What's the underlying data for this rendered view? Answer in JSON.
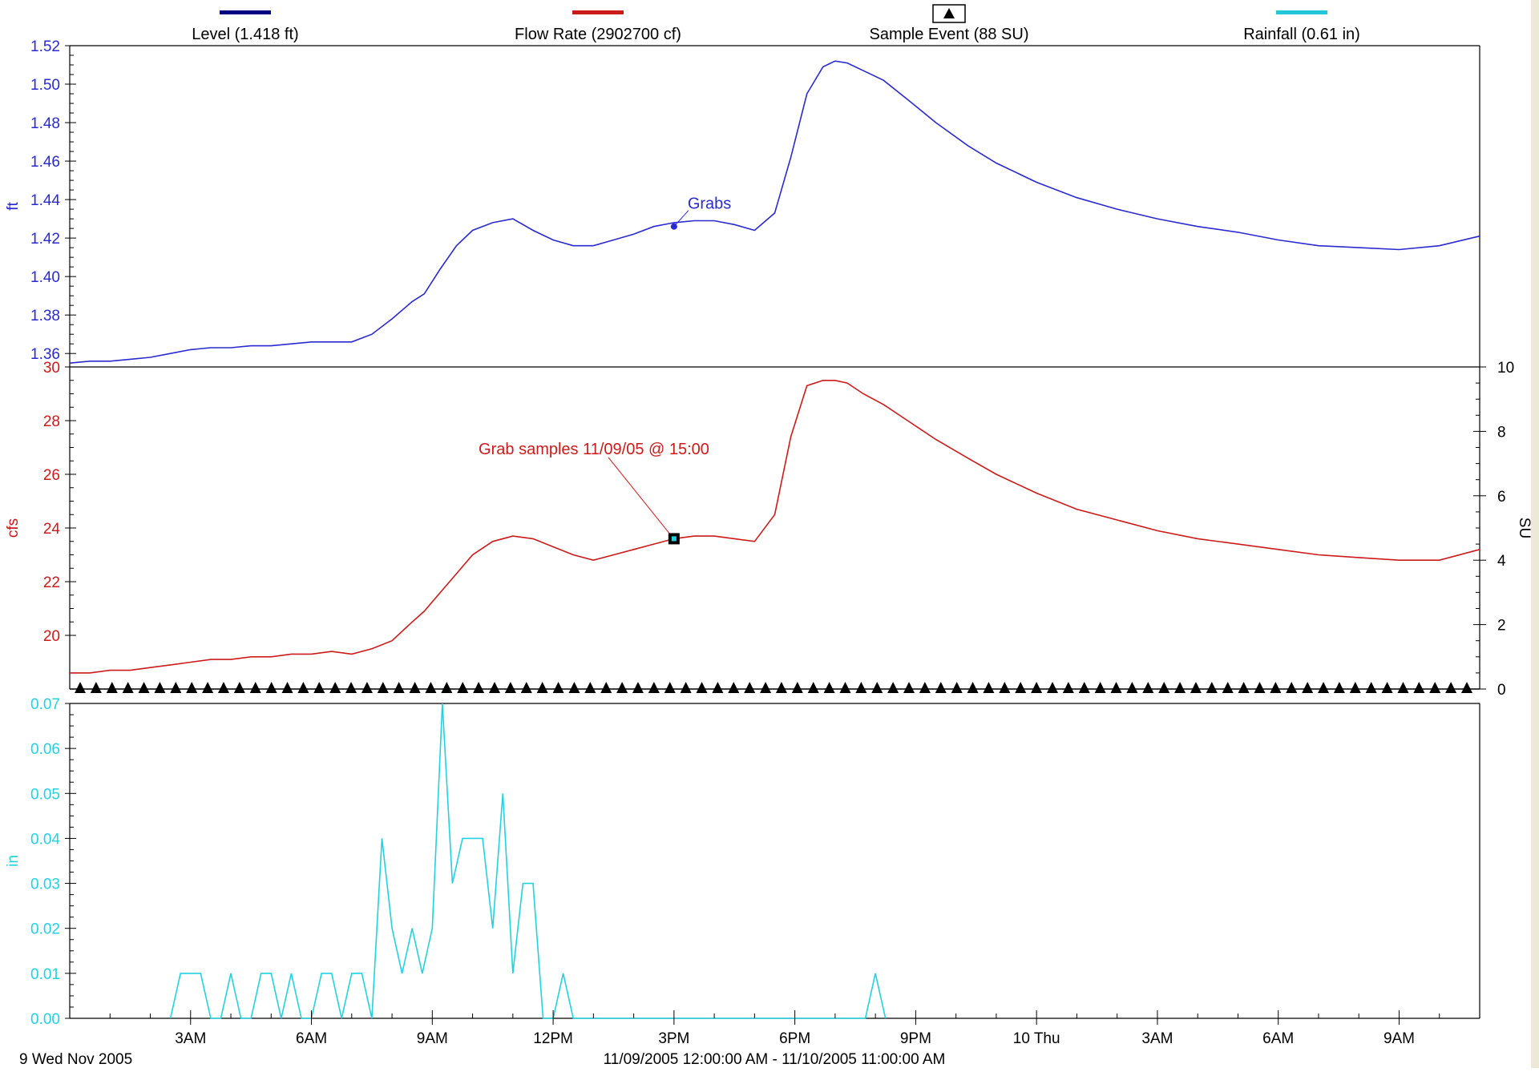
{
  "legend": [
    {
      "label": "Level (1.418 ft)",
      "color": "#000080",
      "marker": "line"
    },
    {
      "label": "Flow Rate (2902700 cf)",
      "color": "#cc1b1b",
      "marker": "line"
    },
    {
      "label": "Sample Event (88 SU)",
      "color": "#000000",
      "marker": "triangle-up-icon"
    },
    {
      "label": "Rainfall (0.61 in)",
      "color": "#22c6d6",
      "marker": "line"
    }
  ],
  "footer": {
    "start_label": "9 Wed Nov 2005",
    "range_label": "11/09/2005 12:00:00 AM - 11/10/2005 11:00:00 AM"
  },
  "chart_data": [
    {
      "type": "line",
      "panel": "level",
      "ylabel": "ft",
      "color": "#2a2ad0",
      "ylim": [
        1.353,
        1.52
      ],
      "yticks": [
        "1.36",
        "1.38",
        "1.40",
        "1.42",
        "1.44",
        "1.46",
        "1.48",
        "1.50",
        "1.52"
      ],
      "x_hours": [
        0,
        0.5,
        1,
        1.5,
        2,
        2.5,
        3,
        3.5,
        4,
        4.5,
        5,
        5.5,
        6,
        6.5,
        7,
        7.5,
        8,
        8.5,
        8.8,
        9.2,
        9.6,
        10,
        10.5,
        11,
        11.5,
        12,
        12.5,
        13,
        13.5,
        14,
        14.5,
        15,
        15.5,
        16,
        16.5,
        17,
        17.5,
        17.9,
        18.3,
        18.7,
        19,
        19.3,
        19.7,
        20.2,
        20.8,
        21.5,
        22.3,
        23,
        24,
        25,
        26,
        27,
        28,
        29,
        30,
        31,
        32,
        33,
        34,
        35
      ],
      "values": [
        1.355,
        1.356,
        1.356,
        1.357,
        1.358,
        1.36,
        1.362,
        1.363,
        1.363,
        1.364,
        1.364,
        1.365,
        1.366,
        1.366,
        1.366,
        1.37,
        1.378,
        1.387,
        1.391,
        1.404,
        1.416,
        1.424,
        1.428,
        1.43,
        1.424,
        1.419,
        1.416,
        1.416,
        1.419,
        1.422,
        1.426,
        1.428,
        1.429,
        1.429,
        1.427,
        1.424,
        1.433,
        1.462,
        1.495,
        1.509,
        1.512,
        1.511,
        1.507,
        1.502,
        1.492,
        1.48,
        1.468,
        1.459,
        1.449,
        1.441,
        1.435,
        1.43,
        1.426,
        1.423,
        1.419,
        1.416,
        1.415,
        1.414,
        1.416,
        1.421
      ],
      "annotation": {
        "label": "Grabs",
        "x_hour": 15,
        "y": 1.426
      }
    },
    {
      "type": "line",
      "panel": "flow",
      "ylabel": "cfs",
      "y2label": "SU",
      "color": "#cc1b1b",
      "ylim": [
        18,
        30
      ],
      "yticks": [
        "20",
        "22",
        "24",
        "26",
        "28",
        "30"
      ],
      "y2lim": [
        0,
        10
      ],
      "y2ticks": [
        "0",
        "2",
        "4",
        "6",
        "8",
        "10"
      ],
      "x_hours": [
        0,
        0.5,
        1,
        1.5,
        2,
        2.5,
        3,
        3.5,
        4,
        4.5,
        5,
        5.5,
        6,
        6.5,
        7,
        7.5,
        8,
        8.5,
        8.8,
        9.2,
        9.6,
        10,
        10.5,
        11,
        11.5,
        12,
        12.5,
        13,
        13.5,
        14,
        14.5,
        15,
        15.5,
        16,
        16.5,
        17,
        17.5,
        17.9,
        18.3,
        18.7,
        19,
        19.3,
        19.7,
        20.2,
        20.8,
        21.5,
        22.3,
        23,
        24,
        25,
        26,
        27,
        28,
        29,
        30,
        31,
        32,
        33,
        34,
        35
      ],
      "values": [
        18.6,
        18.6,
        18.7,
        18.7,
        18.8,
        18.9,
        19.0,
        19.1,
        19.1,
        19.2,
        19.2,
        19.3,
        19.3,
        19.4,
        19.3,
        19.5,
        19.8,
        20.5,
        20.9,
        21.6,
        22.3,
        23.0,
        23.5,
        23.7,
        23.6,
        23.3,
        23.0,
        22.8,
        23.0,
        23.2,
        23.4,
        23.6,
        23.7,
        23.7,
        23.6,
        23.5,
        24.5,
        27.4,
        29.3,
        29.5,
        29.5,
        29.4,
        29.0,
        28.6,
        28.0,
        27.3,
        26.6,
        26.0,
        25.3,
        24.7,
        24.3,
        23.9,
        23.6,
        23.4,
        23.2,
        23.0,
        22.9,
        22.8,
        22.8,
        23.2
      ],
      "annotation": {
        "label": "Grab samples 11/09/05 @ 15:00",
        "x_hour": 15,
        "y": 23.6
      },
      "sample_events": {
        "name": "Sample Event",
        "count": 88,
        "value_su": 0
      }
    },
    {
      "type": "line",
      "panel": "rainfall",
      "ylabel": "in",
      "color": "#22d2e2",
      "ylim": [
        0,
        0.07
      ],
      "yticks": [
        "0.00",
        "0.01",
        "0.02",
        "0.03",
        "0.04",
        "0.05",
        "0.06",
        "0.07"
      ],
      "x_hours": [
        2.5,
        2.75,
        3.0,
        3.25,
        3.5,
        3.75,
        4.0,
        4.25,
        4.5,
        4.75,
        5.0,
        5.25,
        5.5,
        5.75,
        6.0,
        6.25,
        6.5,
        6.75,
        7.0,
        7.25,
        7.5,
        7.75,
        8.0,
        8.25,
        8.5,
        8.75,
        9.0,
        9.25,
        9.5,
        9.75,
        10.0,
        10.25,
        10.5,
        10.75,
        11.0,
        11.25,
        11.5,
        11.75,
        12.0,
        12.25,
        12.5,
        12.75,
        19.75,
        20.0,
        20.25
      ],
      "values": [
        0,
        0.01,
        0.01,
        0.01,
        0,
        0,
        0.01,
        0,
        0,
        0.01,
        0.01,
        0,
        0.01,
        0,
        0,
        0.01,
        0.01,
        0,
        0.01,
        0.01,
        0,
        0.04,
        0.02,
        0.01,
        0.02,
        0.01,
        0.02,
        0.07,
        0.03,
        0.04,
        0.04,
        0.04,
        0.02,
        0.05,
        0.01,
        0.03,
        0.03,
        0,
        0,
        0.01,
        0,
        0,
        0,
        0.01,
        0
      ],
      "xlim": [
        0,
        35
      ],
      "xticks": [
        {
          "hour": 3,
          "label": "3AM"
        },
        {
          "hour": 6,
          "label": "6AM"
        },
        {
          "hour": 9,
          "label": "9AM"
        },
        {
          "hour": 12,
          "label": "12PM"
        },
        {
          "hour": 15,
          "label": "3PM"
        },
        {
          "hour": 18,
          "label": "6PM"
        },
        {
          "hour": 21,
          "label": "9PM"
        },
        {
          "hour": 24,
          "label": "10 Thu"
        },
        {
          "hour": 27,
          "label": "3AM"
        },
        {
          "hour": 30,
          "label": "6AM"
        },
        {
          "hour": 33,
          "label": "9AM"
        }
      ]
    }
  ]
}
